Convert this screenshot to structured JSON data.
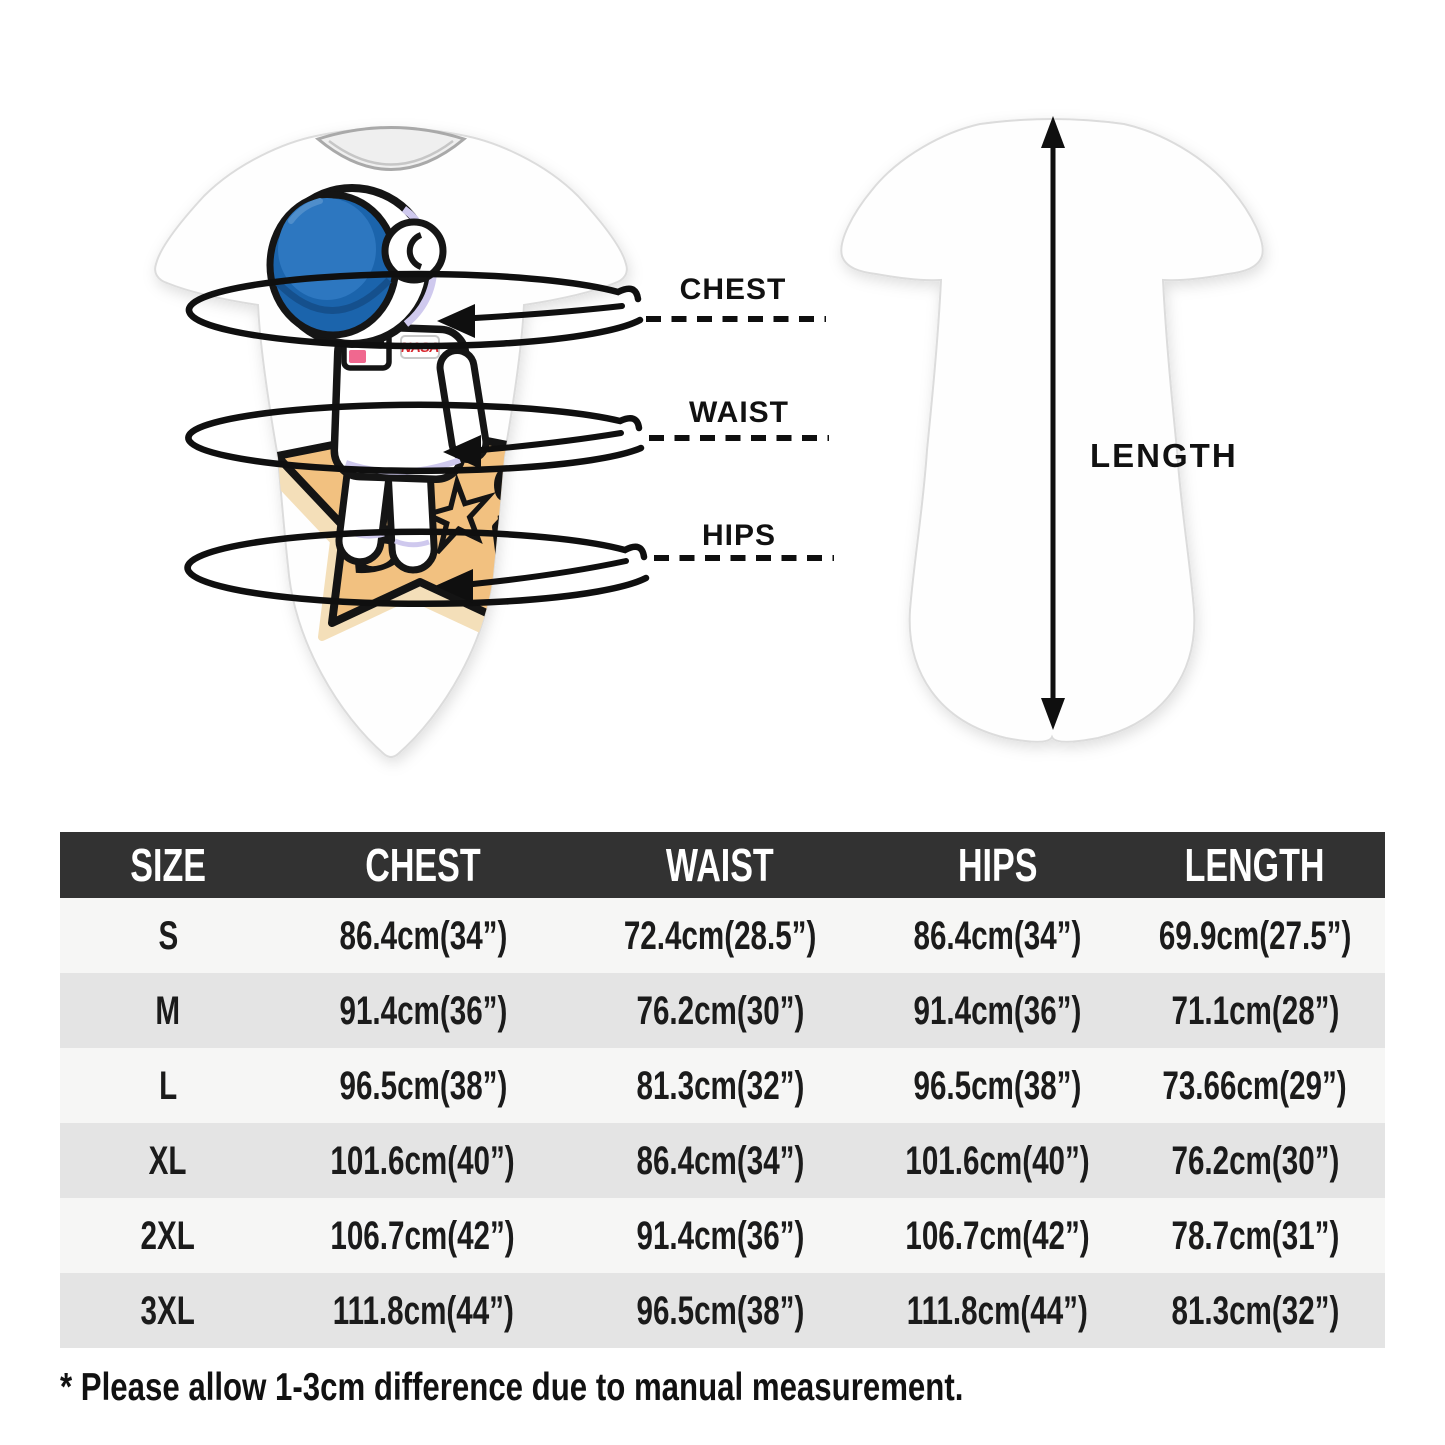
{
  "diagram": {
    "measurements": [
      {
        "label": "CHEST"
      },
      {
        "label": "WAIST"
      },
      {
        "label": "HIPS"
      }
    ],
    "length_label": "LENGTH",
    "print": {
      "nasa": "NASA",
      "signature": "S☆S"
    }
  },
  "size_table": {
    "columns": [
      "SIZE",
      "CHEST",
      "WAIST",
      "HIPS",
      "LENGTH"
    ],
    "rows": [
      [
        "S",
        "86.4cm(34”)",
        "72.4cm(28.5”)",
        "86.4cm(34”)",
        "69.9cm(27.5”)"
      ],
      [
        "M",
        "91.4cm(36”)",
        "76.2cm(30”)",
        "91.4cm(36”)",
        "71.1cm(28”)"
      ],
      [
        "L",
        "96.5cm(38”)",
        "81.3cm(32”)",
        "96.5cm(38”)",
        "73.66cm(29”)"
      ],
      [
        "XL",
        "101.6cm(40”)",
        "86.4cm(34”)",
        "101.6cm(40”)",
        "76.2cm(30”)"
      ],
      [
        "2XL",
        "106.7cm(42”)",
        "91.4cm(36”)",
        "106.7cm(42”)",
        "78.7cm(31”)"
      ],
      [
        "3XL",
        "111.8cm(44”)",
        "96.5cm(38”)",
        "111.8cm(44”)",
        "81.3cm(32”)"
      ]
    ]
  },
  "footnote": "* Please allow 1-3cm difference due to manual measurement.",
  "colors": {
    "header_bg": "#323232",
    "row_light": "#f6f6f5",
    "row_alt": "#e4e4e4",
    "star_fill": "#f2c180",
    "star_shadow": "#f4dfb9",
    "visor_blue": "#1b64ac",
    "nasa_red": "#d9272e",
    "arrow_black": "#0f0f0f"
  }
}
